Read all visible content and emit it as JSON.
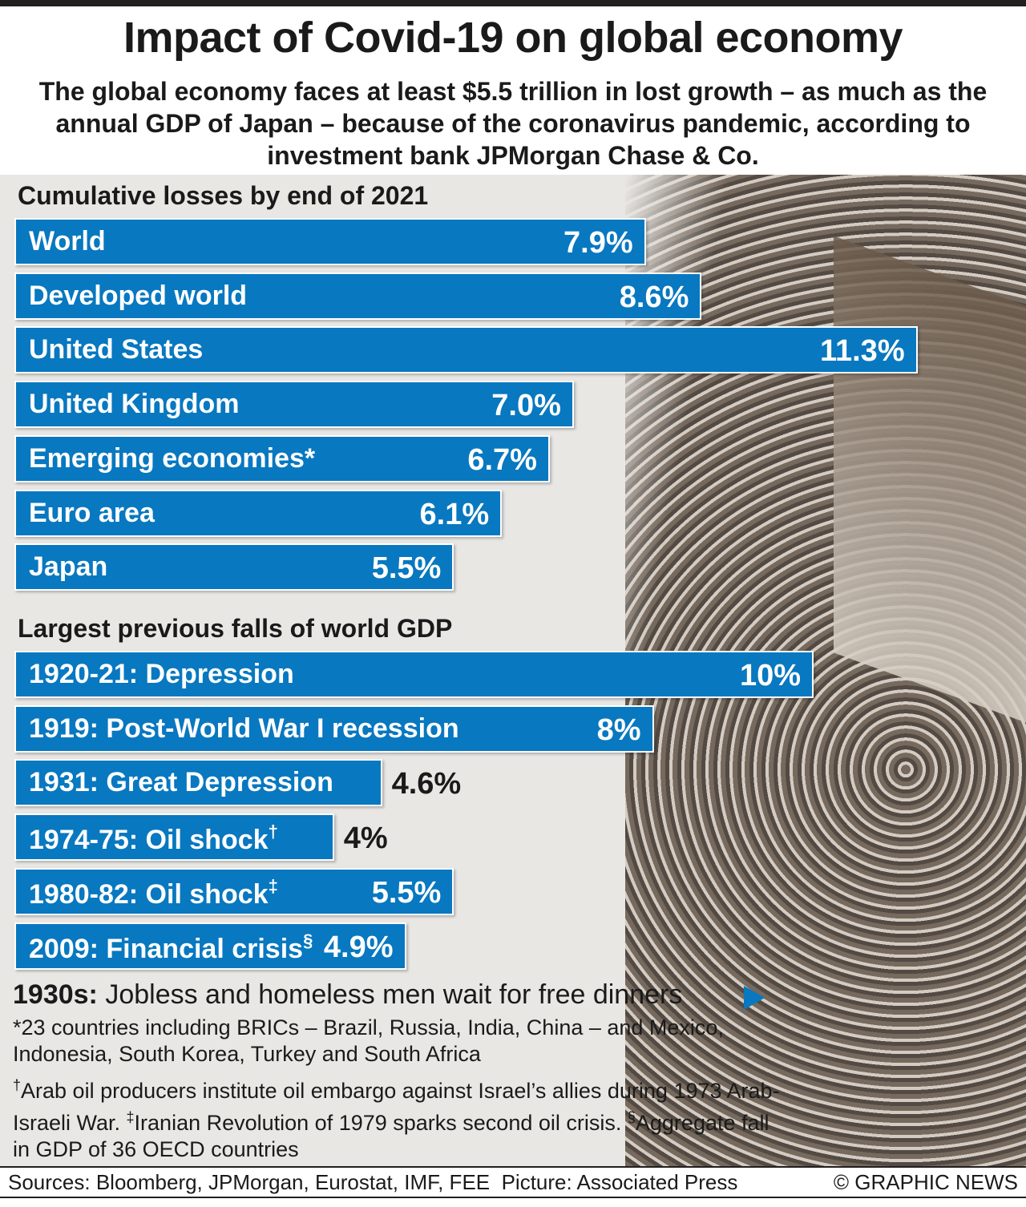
{
  "title": "Impact of Covid-19 on global economy",
  "subtitle": "The global economy faces at least $5.5 trillion in lost growth – as much as the annual GDP of Japan – because of the coronavirus pandemic, according to investment bank JPMorgan Chase & Co.",
  "colors": {
    "bar": "#0878c0"
  },
  "chart_data": [
    {
      "type": "bar",
      "orientation": "horizontal",
      "title": "Cumulative losses by end of 2021",
      "unit": "%",
      "categories": [
        "World",
        "Developed world",
        "United States",
        "United Kingdom",
        "Emerging economies*",
        "Euro area",
        "Japan"
      ],
      "values": [
        7.9,
        8.6,
        11.3,
        7.0,
        6.7,
        6.1,
        5.5
      ],
      "labels": [
        "7.9%",
        "8.6%",
        "11.3%",
        "7.0%",
        "6.7%",
        "6.1%",
        "5.5%"
      ],
      "sup": [
        "",
        "",
        "",
        "",
        "",
        "",
        ""
      ]
    },
    {
      "type": "bar",
      "orientation": "horizontal",
      "title": "Largest previous falls of world GDP",
      "unit": "%",
      "categories": [
        "1920-21: Depression",
        "1919: Post-World War I recession",
        "1931: Great Depression",
        "1974-75: Oil shock",
        "1980-82: Oil shock",
        "2009: Financial crisis"
      ],
      "values": [
        10,
        8,
        4.6,
        4,
        5.5,
        4.9
      ],
      "labels": [
        "10%",
        "8%",
        "4.6%",
        "4%",
        "5.5%",
        "4.9%"
      ],
      "sup": [
        "",
        "",
        "",
        "†",
        "‡",
        "§"
      ]
    }
  ],
  "caption": {
    "bold": "1930s:",
    "text": " Jobless and homeless men wait for free dinners"
  },
  "notes": {
    "n1": "*23 countries including BRICs – Brazil, Russia, India, China – and Mexico, Indonesia, South Korea, Turkey and South Africa",
    "d1": "†",
    "t1": "Arab oil producers institute oil embargo against Israel’s allies during 1973 Arab-Israeli War. ",
    "d2": "‡",
    "t2": "Iranian Revolution of 1979 sparks second oil crisis. ",
    "d3": "§",
    "t3": "Aggregate fall in GDP of 36 OECD countries"
  },
  "footer": {
    "sources": "Sources: Bloomberg, JPMorgan, Eurostat, IMF, FEE  Picture: Associated Press",
    "credit": "© GRAPHIC NEWS"
  }
}
